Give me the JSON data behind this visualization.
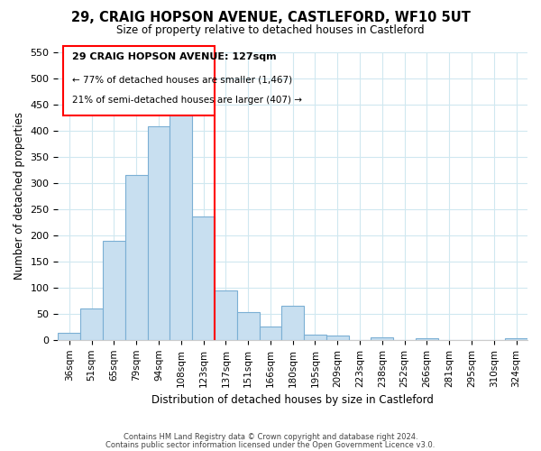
{
  "title": "29, CRAIG HOPSON AVENUE, CASTLEFORD, WF10 5UT",
  "subtitle": "Size of property relative to detached houses in Castleford",
  "xlabel": "Distribution of detached houses by size in Castleford",
  "ylabel": "Number of detached properties",
  "bar_labels": [
    "36sqm",
    "51sqm",
    "65sqm",
    "79sqm",
    "94sqm",
    "108sqm",
    "123sqm",
    "137sqm",
    "151sqm",
    "166sqm",
    "180sqm",
    "195sqm",
    "209sqm",
    "223sqm",
    "238sqm",
    "252sqm",
    "266sqm",
    "281sqm",
    "295sqm",
    "310sqm",
    "324sqm"
  ],
  "bar_values": [
    13,
    60,
    190,
    315,
    408,
    430,
    235,
    95,
    53,
    25,
    65,
    10,
    8,
    0,
    5,
    0,
    3,
    0,
    0,
    0,
    3
  ],
  "bar_color": "#c8dff0",
  "bar_edge_color": "#7bafd4",
  "vline_color": "red",
  "vline_x_index": 6,
  "ylim": [
    0,
    550
  ],
  "yticks": [
    0,
    50,
    100,
    150,
    200,
    250,
    300,
    350,
    400,
    450,
    500,
    550
  ],
  "annotation_title": "29 CRAIG HOPSON AVENUE: 127sqm",
  "annotation_line1": "← 77% of detached houses are smaller (1,467)",
  "annotation_line2": "21% of semi-detached houses are larger (407) →",
  "footnote1": "Contains HM Land Registry data © Crown copyright and database right 2024.",
  "footnote2": "Contains public sector information licensed under the Open Government Licence v3.0."
}
